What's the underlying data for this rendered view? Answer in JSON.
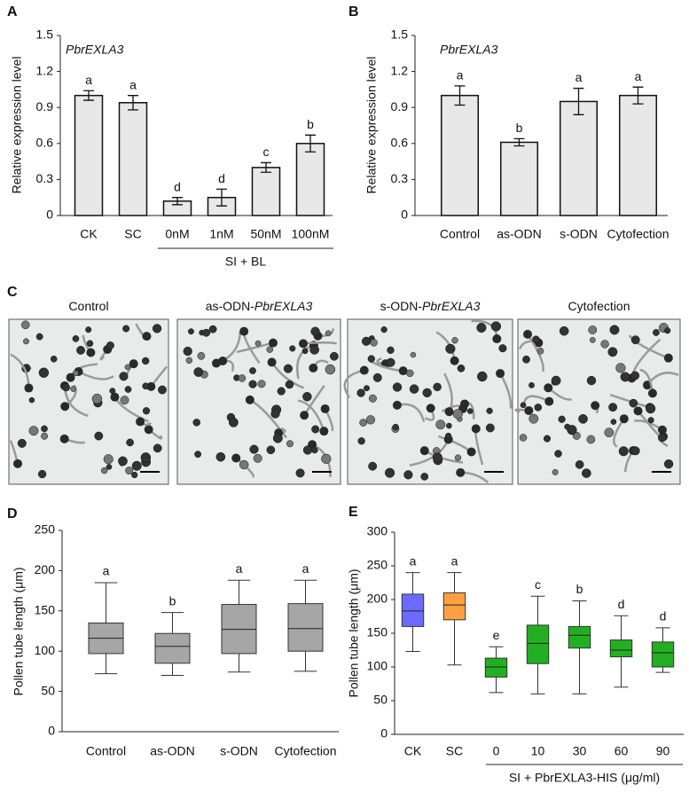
{
  "chart_data": [
    {
      "type": "bar",
      "panel_label": "A",
      "y_label": "Relative expression level",
      "annotation": "PbrEXLA3",
      "categories": [
        "CK",
        "SC",
        "0nM",
        "1nM",
        "50nM",
        "100nM"
      ],
      "values": [
        1.0,
        0.94,
        0.12,
        0.15,
        0.4,
        0.6
      ],
      "errors": [
        0.04,
        0.06,
        0.03,
        0.07,
        0.04,
        0.07
      ],
      "significance_letters": [
        "a",
        "a",
        "d",
        "d",
        "c",
        "b"
      ],
      "group_label": "SI + BL",
      "color": "#e8e8e8",
      "ylim": [
        0,
        1.5
      ],
      "yticks": [
        0,
        0.3,
        0.6,
        0.9,
        1.2,
        1.5
      ]
    },
    {
      "type": "bar",
      "panel_label": "B",
      "y_label": "Relative expression level",
      "annotation": "PbrEXLA3",
      "categories": [
        "Control",
        "as-ODN",
        "s-ODN",
        "Cytofection"
      ],
      "values": [
        1.0,
        0.61,
        0.95,
        1.0
      ],
      "errors": [
        0.08,
        0.03,
        0.11,
        0.07
      ],
      "significance_letters": [
        "a",
        "b",
        "a",
        "a"
      ],
      "color": "#e8e8e8",
      "ylim": [
        0,
        1.5
      ],
      "yticks": [
        0,
        0.3,
        0.6,
        0.9,
        1.2,
        1.5
      ]
    },
    {
      "type": "box",
      "panel_label": "D",
      "y_label": "Pollen tube length (μm)",
      "categories": [
        "Control",
        "as-ODN",
        "s-ODN",
        "Cytofection"
      ],
      "boxes": [
        {
          "min": 72,
          "q1": 97,
          "median": 116,
          "q3": 135,
          "max": 185
        },
        {
          "min": 70,
          "q1": 85,
          "median": 106,
          "q3": 122,
          "max": 148
        },
        {
          "min": 74,
          "q1": 97,
          "median": 127,
          "q3": 158,
          "max": 188
        },
        {
          "min": 75,
          "q1": 100,
          "median": 128,
          "q3": 159,
          "max": 188
        }
      ],
      "significance_letters": [
        "a",
        "b",
        "a",
        "a"
      ],
      "colors": [
        "#a6a6a6",
        "#a6a6a6",
        "#a6a6a6",
        "#a6a6a6"
      ],
      "ylim": [
        0,
        250
      ],
      "yticks": [
        0,
        50,
        100,
        150,
        200,
        250
      ]
    },
    {
      "type": "box",
      "panel_label": "E",
      "y_label": "Pollen tube length (μm)",
      "categories": [
        "CK",
        "SC",
        "0",
        "10",
        "30",
        "60",
        "90"
      ],
      "boxes": [
        {
          "min": 123,
          "q1": 160,
          "median": 183,
          "q3": 208,
          "max": 240
        },
        {
          "min": 103,
          "q1": 170,
          "median": 192,
          "q3": 210,
          "max": 240
        },
        {
          "min": 62,
          "q1": 85,
          "median": 100,
          "q3": 113,
          "max": 130
        },
        {
          "min": 60,
          "q1": 105,
          "median": 135,
          "q3": 162,
          "max": 205
        },
        {
          "min": 60,
          "q1": 128,
          "median": 147,
          "q3": 160,
          "max": 198
        },
        {
          "min": 70,
          "q1": 115,
          "median": 125,
          "q3": 140,
          "max": 176
        },
        {
          "min": 92,
          "q1": 100,
          "median": 121,
          "q3": 137,
          "max": 158
        }
      ],
      "significance_letters": [
        "a",
        "a",
        "e",
        "c",
        "b",
        "d",
        "d"
      ],
      "group_label": "SI + PbrEXLA3-HIS (μg/ml)",
      "colors": [
        "#6b6bff",
        "#ffa040",
        "#22b022",
        "#22b022",
        "#22b022",
        "#22b022",
        "#22b022"
      ],
      "ylim": [
        0,
        300
      ],
      "yticks": [
        0,
        50,
        100,
        150,
        200,
        250,
        300
      ]
    }
  ],
  "micrographs": {
    "panel_label": "C",
    "titles": [
      [
        "Control"
      ],
      [
        "as-ODN-",
        "PbrEXLA3"
      ],
      [
        "s-ODN-",
        "PbrEXLA3"
      ],
      [
        "Cytofection"
      ]
    ]
  }
}
